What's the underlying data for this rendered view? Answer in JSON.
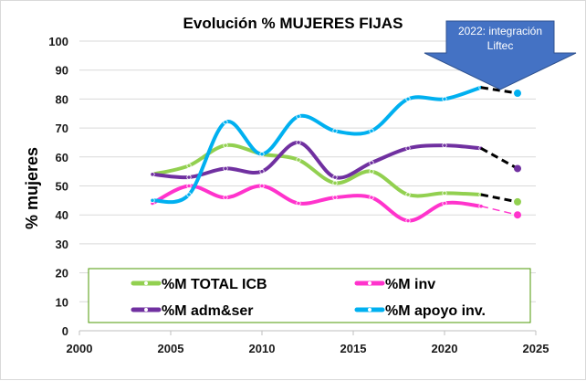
{
  "chart_data": {
    "type": "line",
    "title": "Evolución  % MUJERES FIJAS",
    "xlabel": "",
    "ylabel": "% mujeres",
    "xlim": [
      2000,
      2025
    ],
    "ylim": [
      0,
      100
    ],
    "xticks": [
      2000,
      2005,
      2010,
      2015,
      2020,
      2025
    ],
    "yticks": [
      0,
      10,
      20,
      30,
      40,
      50,
      60,
      70,
      80,
      90,
      100
    ],
    "grid": "horizontal",
    "legend": "bottom-inside",
    "series": [
      {
        "name": "%M TOTAL ICB",
        "color": "#92d050",
        "x": [
          2004,
          2006,
          2008,
          2010,
          2012,
          2014,
          2016,
          2018,
          2020,
          2022
        ],
        "values": [
          54,
          57,
          64,
          61,
          59,
          51,
          55,
          47,
          47.5,
          47
        ],
        "projection": {
          "x": [
            2022,
            2024
          ],
          "values": [
            47,
            44.5
          ]
        }
      },
      {
        "name": "%M inv",
        "color": "#ff33cc",
        "x": [
          2004,
          2006,
          2008,
          2010,
          2012,
          2014,
          2016,
          2018,
          2020,
          2022
        ],
        "values": [
          44,
          50,
          46,
          50,
          44,
          46,
          46,
          38,
          44,
          43
        ],
        "projection": {
          "x": [
            2022,
            2024
          ],
          "values": [
            43,
            40
          ]
        }
      },
      {
        "name": "%M adm&ser",
        "color": "#7030a0",
        "x": [
          2004,
          2006,
          2008,
          2010,
          2012,
          2014,
          2016,
          2018,
          2020,
          2022
        ],
        "values": [
          54,
          53,
          56,
          55,
          65,
          53,
          58,
          63,
          64,
          63
        ],
        "projection": {
          "x": [
            2022,
            2024
          ],
          "values": [
            63,
            56
          ]
        }
      },
      {
        "name": "%M apoyo inv.",
        "color": "#00b0f0",
        "x": [
          2004,
          2006,
          2008,
          2010,
          2012,
          2014,
          2016,
          2018,
          2020,
          2022
        ],
        "values": [
          45,
          47,
          72,
          61,
          74,
          69,
          69,
          80,
          80,
          84
        ],
        "projection": {
          "x": [
            2022,
            2024
          ],
          "values": [
            84,
            82
          ]
        }
      }
    ],
    "annotation": {
      "line1": "2022: integración",
      "line2": "Liftec",
      "fill": "#4472c4"
    }
  }
}
